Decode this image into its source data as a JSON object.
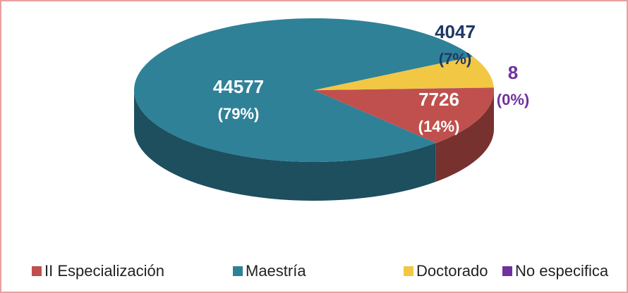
{
  "chart_data": {
    "type": "pie3d",
    "categories": [
      "II Especialización",
      "Maestría",
      "Doctorado",
      "No especifica"
    ],
    "values": [
      7726,
      44577,
      4047,
      8
    ],
    "percent_labels": [
      "(14%)",
      "(79%)",
      "(7%)",
      "(0%)"
    ],
    "colors": [
      "#c0504d",
      "#2f8198",
      "#f2c744",
      "#7030a0"
    ],
    "label_colors": [
      "#ffffff",
      "#ffffff",
      "#1f3864",
      "#7030a0"
    ],
    "legend": "bottom"
  }
}
